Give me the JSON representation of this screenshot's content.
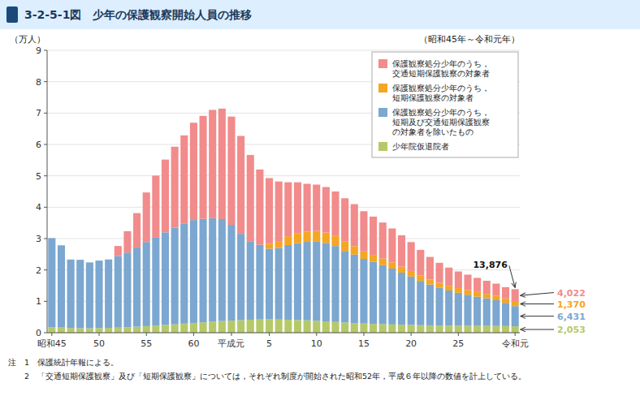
{
  "chart_data": {
    "type": "bar",
    "stacked": true,
    "title": "3-2-5-1図　少年の保護観察開始人員の推移",
    "subtitle": "（昭和45年～令和元年）",
    "y_label": "（万人）",
    "notes": [
      "注　1　保護統計年報による。",
      "　　2　「交通短期保護観察」及び「短期保護観察」については，それぞれ制度が開始された昭和52年，平成６年以降の数値を計上している。"
    ],
    "categories": [
      "昭和45",
      null,
      null,
      null,
      null,
      "50",
      null,
      null,
      null,
      null,
      "55",
      null,
      null,
      null,
      null,
      "60",
      null,
      null,
      null,
      "平成元",
      null,
      null,
      null,
      "5",
      null,
      null,
      null,
      null,
      "10",
      null,
      null,
      null,
      null,
      "15",
      null,
      null,
      null,
      null,
      "20",
      null,
      null,
      null,
      null,
      "25",
      null,
      null,
      null,
      null,
      null,
      "令和元"
    ],
    "series": [
      {
        "name": "少年院仮退院者",
        "color": "#b5c96a",
        "values": [
          0.175,
          0.165,
          0.152,
          0.143,
          0.14,
          0.148,
          0.155,
          0.163,
          0.175,
          0.192,
          0.21,
          0.228,
          0.248,
          0.268,
          0.29,
          0.312,
          0.33,
          0.352,
          0.372,
          0.388,
          0.402,
          0.415,
          0.422,
          0.428,
          0.42,
          0.415,
          0.405,
          0.395,
          0.38,
          0.362,
          0.342,
          0.325,
          0.308,
          0.292,
          0.28,
          0.272,
          0.263,
          0.255,
          0.248,
          0.24,
          0.235,
          0.228,
          0.225,
          0.222,
          0.22,
          0.218,
          0.216,
          0.214,
          0.212,
          0.2053
        ]
      },
      {
        "name": "保護観察処分少年のうち，\n短期及び交通短期保護観察\nの対象者を除いたもの",
        "color": "#7ba7d0",
        "values": [
          2.84,
          2.62,
          2.18,
          2.18,
          2.1,
          2.15,
          2.18,
          2.28,
          2.38,
          2.52,
          2.68,
          2.8,
          2.95,
          3.08,
          3.18,
          3.28,
          3.3,
          3.3,
          3.25,
          3.05,
          2.75,
          2.5,
          2.38,
          2.25,
          2.28,
          2.38,
          2.45,
          2.5,
          2.52,
          2.5,
          2.42,
          2.28,
          2.18,
          2.06,
          1.98,
          1.88,
          1.78,
          1.66,
          1.54,
          1.41,
          1.3,
          1.2,
          1.12,
          1.05,
          0.99,
          0.93,
          0.88,
          0.82,
          0.74,
          0.6431
        ]
      },
      {
        "name": "保護観察処分少年のうち，\n短期保護観察の対象者",
        "color": "#f5a623",
        "values": [
          0.0,
          0.0,
          0.0,
          0.0,
          0.0,
          0.0,
          0.0,
          0.0,
          0.0,
          0.0,
          0.0,
          0.0,
          0.0,
          0.0,
          0.0,
          0.0,
          0.0,
          0.0,
          0.0,
          0.0,
          0.0,
          0.0,
          0.0,
          0.15,
          0.22,
          0.28,
          0.32,
          0.33,
          0.34,
          0.33,
          0.32,
          0.3,
          0.27,
          0.24,
          0.22,
          0.21,
          0.2,
          0.19,
          0.18,
          0.17,
          0.16,
          0.16,
          0.15,
          0.15,
          0.15,
          0.15,
          0.14,
          0.14,
          0.14,
          0.137
        ]
      },
      {
        "name": "保護観察処分少年のうち，\n交通短期保護観察の対象者",
        "color": "#f28b8b",
        "values": [
          0.0,
          0.0,
          0.0,
          0.0,
          0.0,
          0.0,
          0.0,
          0.32,
          0.68,
          1.1,
          1.58,
          1.98,
          2.32,
          2.58,
          2.82,
          3.1,
          3.28,
          3.45,
          3.52,
          3.45,
          3.12,
          2.75,
          2.4,
          2.1,
          1.9,
          1.72,
          1.62,
          1.52,
          1.48,
          1.45,
          1.42,
          1.38,
          1.34,
          1.28,
          1.22,
          1.15,
          1.08,
          1.0,
          0.92,
          0.82,
          0.72,
          0.64,
          0.58,
          0.53,
          0.49,
          0.45,
          0.42,
          0.39,
          0.36,
          0.4022
        ]
      }
    ],
    "annotations": [
      {
        "label": "13,876",
        "value": 1.3876
      },
      {
        "label": "4,022",
        "value": 0.4022,
        "color": "#f28b8b"
      },
      {
        "label": "1,370",
        "value": 0.137,
        "color": "#f5a623"
      },
      {
        "label": "6,431",
        "value": 0.6431,
        "color": "#7ba7d0"
      },
      {
        "label": "2,053",
        "value": 0.2053,
        "color": "#b5c96a"
      }
    ],
    "ylim": [
      0,
      9
    ],
    "yticks": [
      0,
      1,
      2,
      3,
      4,
      5,
      6,
      7,
      8,
      9
    ],
    "grid": true,
    "legend": "upper right"
  }
}
